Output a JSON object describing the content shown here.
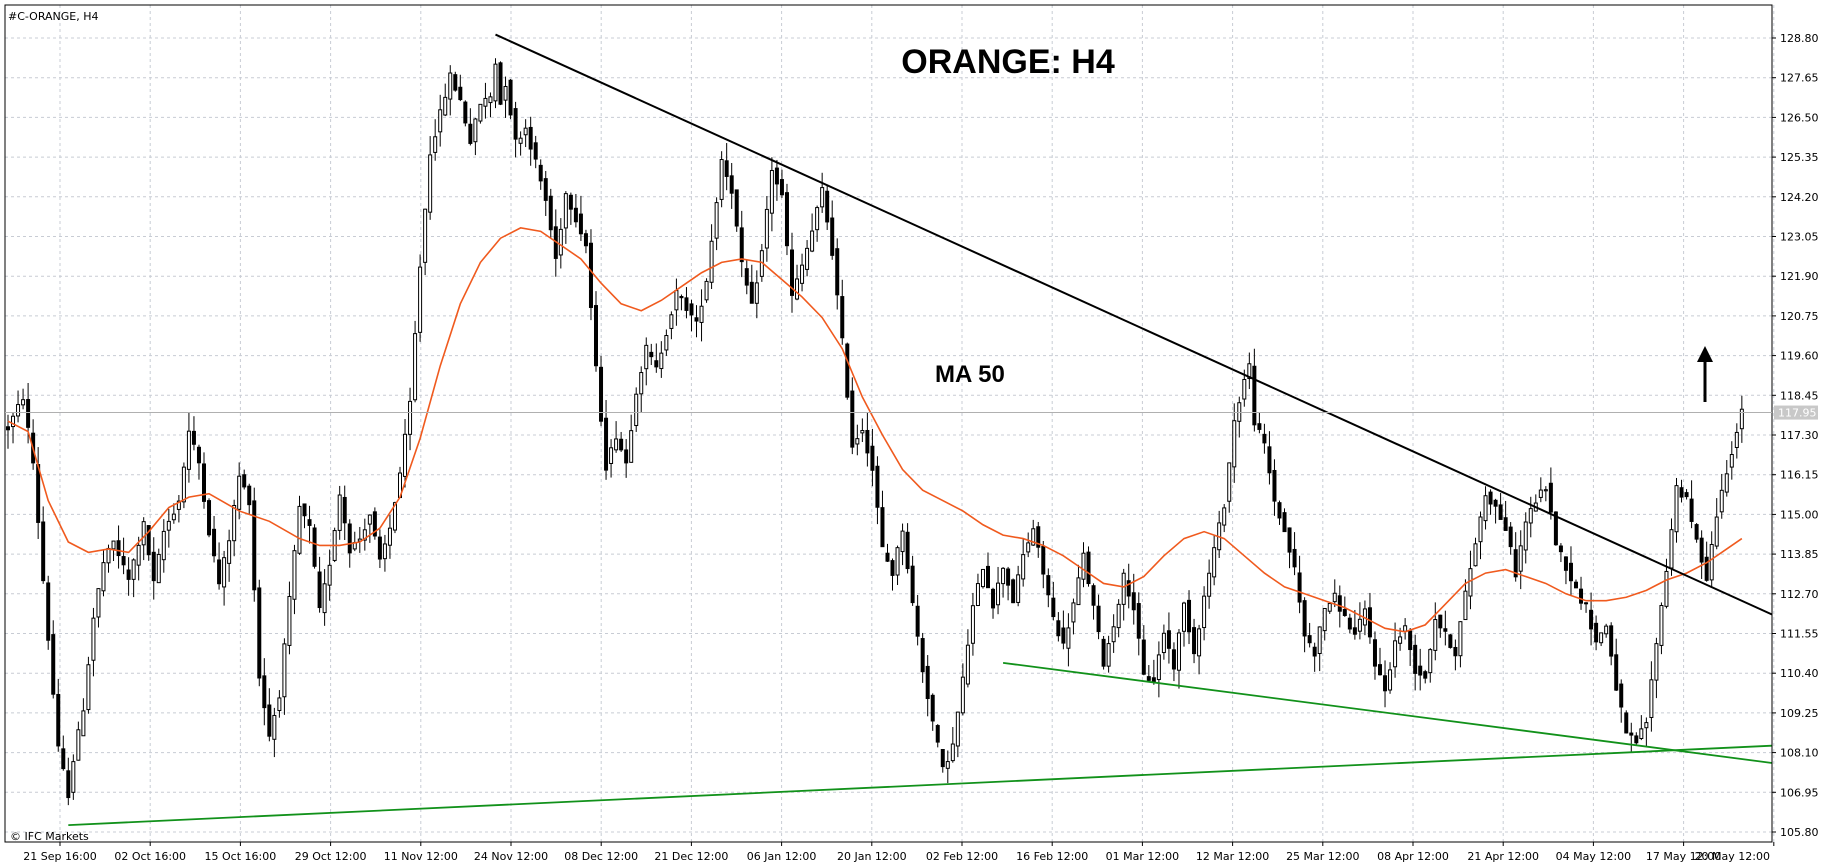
{
  "symbol_label": "#C-ORANGE, H4",
  "copyright": "© IFC Markets",
  "colors": {
    "background": "#ffffff",
    "grid": "#c8ccd4",
    "candle": "#000000",
    "ma": "#f05a1e",
    "trendline_down": "#000000",
    "trendline_support": "#11911a",
    "price_tag": "#c8c8c8"
  },
  "chart_data": {
    "type": "candlestick",
    "title": "ORANGE: H4",
    "annotation_ma": "MA 50",
    "arrow_direction": "up",
    "current_price": 117.95,
    "ylim": [
      105.8,
      128.8
    ],
    "grid": true,
    "y_ticks": [
      "128.80",
      "127.65",
      "126.50",
      "125.35",
      "124.20",
      "123.05",
      "121.90",
      "120.75",
      "119.60",
      "118.45",
      "117.30",
      "116.15",
      "115.00",
      "113.85",
      "112.70",
      "111.55",
      "110.40",
      "109.25",
      "108.10",
      "106.95",
      "105.80"
    ],
    "x_ticks": [
      "21 Sep 16:00",
      "02 Oct 16:00",
      "15 Oct 16:00",
      "29 Oct 12:00",
      "11 Nov 12:00",
      "24 Nov 12:00",
      "08 Dec 12:00",
      "21 Dec 12:00",
      "06 Jan 12:00",
      "20 Jan 12:00",
      "02 Feb 12:00",
      "16 Feb 12:00",
      "01 Mar 12:00",
      "12 Mar 12:00",
      "25 Mar 12:00",
      "08 Apr 12:00",
      "21 Apr 12:00",
      "04 May 12:00",
      "17 May 12:00",
      "20 May 12:00"
    ],
    "price_path": [
      [
        0,
        117.5
      ],
      [
        3,
        118.4
      ],
      [
        5,
        116.5
      ],
      [
        8,
        111.4
      ],
      [
        10,
        108.2
      ],
      [
        12,
        106.9
      ],
      [
        13,
        107.9
      ],
      [
        15,
        109.4
      ],
      [
        17,
        112.0
      ],
      [
        19,
        113.6
      ],
      [
        21,
        114.2
      ],
      [
        24,
        113.1
      ],
      [
        27,
        114.7
      ],
      [
        29,
        113.0
      ],
      [
        31,
        114.5
      ],
      [
        34,
        115.4
      ],
      [
        36,
        117.4
      ],
      [
        38,
        116.5
      ],
      [
        40,
        114.5
      ],
      [
        42,
        113.0
      ],
      [
        44,
        114.3
      ],
      [
        46,
        116.1
      ],
      [
        48,
        115.4
      ],
      [
        50,
        110.3
      ],
      [
        52,
        108.6
      ],
      [
        54,
        109.8
      ],
      [
        56,
        112.5
      ],
      [
        58,
        115.2
      ],
      [
        60,
        114.6
      ],
      [
        62,
        112.2
      ],
      [
        64,
        113.6
      ],
      [
        66,
        115.6
      ],
      [
        68,
        114.0
      ],
      [
        70,
        114.3
      ],
      [
        72,
        115.0
      ],
      [
        74,
        113.6
      ],
      [
        76,
        114.6
      ],
      [
        78,
        116.2
      ],
      [
        80,
        118.2
      ],
      [
        82,
        122.2
      ],
      [
        84,
        125.5
      ],
      [
        86,
        126.6
      ],
      [
        88,
        127.7
      ],
      [
        90,
        127.0
      ],
      [
        92,
        125.8
      ],
      [
        94,
        126.9
      ],
      [
        96,
        127.1
      ],
      [
        97,
        128.1
      ],
      [
        98,
        126.9
      ],
      [
        99,
        127.5
      ],
      [
        101,
        125.8
      ],
      [
        103,
        126.2
      ],
      [
        105,
        125.2
      ],
      [
        107,
        124.1
      ],
      [
        109,
        122.4
      ],
      [
        111,
        124.3
      ],
      [
        113,
        123.6
      ],
      [
        115,
        122.8
      ],
      [
        117,
        119.2
      ],
      [
        119,
        116.4
      ],
      [
        121,
        117.3
      ],
      [
        123,
        116.5
      ],
      [
        125,
        118.6
      ],
      [
        127,
        119.8
      ],
      [
        129,
        119.2
      ],
      [
        131,
        120.3
      ],
      [
        133,
        121.4
      ],
      [
        135,
        121.0
      ],
      [
        137,
        120.5
      ],
      [
        139,
        121.8
      ],
      [
        141,
        124.1
      ],
      [
        142,
        125.3
      ],
      [
        144,
        124.4
      ],
      [
        146,
        122.2
      ],
      [
        148,
        121.0
      ],
      [
        150,
        122.6
      ],
      [
        152,
        125.0
      ],
      [
        154,
        124.2
      ],
      [
        156,
        121.3
      ],
      [
        158,
        122.2
      ],
      [
        160,
        123.2
      ],
      [
        162,
        124.4
      ],
      [
        164,
        122.6
      ],
      [
        166,
        120.0
      ],
      [
        168,
        117.0
      ],
      [
        170,
        117.5
      ],
      [
        172,
        116.3
      ],
      [
        174,
        114.0
      ],
      [
        176,
        113.3
      ],
      [
        178,
        114.6
      ],
      [
        180,
        112.4
      ],
      [
        182,
        110.5
      ],
      [
        184,
        109.0
      ],
      [
        186,
        107.6
      ],
      [
        188,
        108.3
      ],
      [
        190,
        110.2
      ],
      [
        192,
        112.3
      ],
      [
        194,
        113.5
      ],
      [
        196,
        112.4
      ],
      [
        198,
        113.5
      ],
      [
        200,
        112.5
      ],
      [
        202,
        113.8
      ],
      [
        204,
        114.6
      ],
      [
        206,
        113.3
      ],
      [
        208,
        112.0
      ],
      [
        210,
        111.2
      ],
      [
        212,
        112.4
      ],
      [
        214,
        113.8
      ],
      [
        216,
        112.3
      ],
      [
        218,
        110.7
      ],
      [
        220,
        111.8
      ],
      [
        222,
        113.2
      ],
      [
        224,
        112.3
      ],
      [
        226,
        110.3
      ],
      [
        228,
        110.2
      ],
      [
        230,
        111.6
      ],
      [
        232,
        110.6
      ],
      [
        234,
        112.4
      ],
      [
        236,
        111.0
      ],
      [
        238,
        112.6
      ],
      [
        240,
        114.0
      ],
      [
        242,
        115.3
      ],
      [
        244,
        117.7
      ],
      [
        246,
        118.9
      ],
      [
        247,
        119.3
      ],
      [
        248,
        117.7
      ],
      [
        250,
        117.0
      ],
      [
        252,
        115.4
      ],
      [
        254,
        114.5
      ],
      [
        256,
        113.4
      ],
      [
        258,
        111.5
      ],
      [
        260,
        111.0
      ],
      [
        262,
        112.3
      ],
      [
        264,
        112.6
      ],
      [
        266,
        112.0
      ],
      [
        268,
        111.5
      ],
      [
        270,
        112.2
      ],
      [
        272,
        110.7
      ],
      [
        274,
        109.9
      ],
      [
        276,
        111.3
      ],
      [
        278,
        111.7
      ],
      [
        280,
        110.5
      ],
      [
        282,
        110.3
      ],
      [
        284,
        112.0
      ],
      [
        286,
        111.5
      ],
      [
        288,
        111.0
      ],
      [
        290,
        112.7
      ],
      [
        292,
        114.2
      ],
      [
        294,
        115.6
      ],
      [
        296,
        115.2
      ],
      [
        298,
        114.6
      ],
      [
        300,
        113.3
      ],
      [
        302,
        114.8
      ],
      [
        304,
        115.4
      ],
      [
        306,
        115.8
      ],
      [
        308,
        114.2
      ],
      [
        310,
        113.5
      ],
      [
        312,
        112.8
      ],
      [
        314,
        112.3
      ],
      [
        316,
        111.3
      ],
      [
        318,
        111.8
      ],
      [
        320,
        110.0
      ],
      [
        322,
        108.6
      ],
      [
        324,
        108.4
      ],
      [
        326,
        109.0
      ],
      [
        328,
        111.3
      ],
      [
        330,
        113.4
      ],
      [
        332,
        115.8
      ],
      [
        334,
        115.4
      ],
      [
        336,
        114.2
      ],
      [
        338,
        113.2
      ],
      [
        340,
        115.0
      ],
      [
        342,
        116.3
      ],
      [
        344,
        117.4
      ],
      [
        345,
        117.95
      ]
    ],
    "ma50_path": [
      [
        0,
        117.7
      ],
      [
        4,
        117.4
      ],
      [
        8,
        115.4
      ],
      [
        12,
        114.2
      ],
      [
        16,
        113.9
      ],
      [
        20,
        114.0
      ],
      [
        24,
        113.9
      ],
      [
        28,
        114.5
      ],
      [
        32,
        115.2
      ],
      [
        36,
        115.5
      ],
      [
        40,
        115.6
      ],
      [
        46,
        115.1
      ],
      [
        52,
        114.8
      ],
      [
        58,
        114.3
      ],
      [
        62,
        114.1
      ],
      [
        66,
        114.1
      ],
      [
        70,
        114.2
      ],
      [
        74,
        114.6
      ],
      [
        78,
        115.5
      ],
      [
        82,
        117.2
      ],
      [
        86,
        119.3
      ],
      [
        90,
        121.1
      ],
      [
        94,
        122.3
      ],
      [
        98,
        123.0
      ],
      [
        102,
        123.3
      ],
      [
        106,
        123.2
      ],
      [
        110,
        122.8
      ],
      [
        114,
        122.4
      ],
      [
        118,
        121.7
      ],
      [
        122,
        121.1
      ],
      [
        126,
        120.9
      ],
      [
        130,
        121.2
      ],
      [
        134,
        121.6
      ],
      [
        138,
        122.0
      ],
      [
        142,
        122.3
      ],
      [
        146,
        122.4
      ],
      [
        150,
        122.3
      ],
      [
        154,
        121.8
      ],
      [
        158,
        121.3
      ],
      [
        162,
        120.7
      ],
      [
        166,
        119.8
      ],
      [
        170,
        118.4
      ],
      [
        174,
        117.3
      ],
      [
        178,
        116.3
      ],
      [
        182,
        115.7
      ],
      [
        186,
        115.4
      ],
      [
        190,
        115.1
      ],
      [
        194,
        114.7
      ],
      [
        198,
        114.4
      ],
      [
        202,
        114.3
      ],
      [
        206,
        114.1
      ],
      [
        210,
        113.8
      ],
      [
        214,
        113.4
      ],
      [
        218,
        113.0
      ],
      [
        222,
        112.9
      ],
      [
        226,
        113.2
      ],
      [
        230,
        113.8
      ],
      [
        234,
        114.3
      ],
      [
        238,
        114.5
      ],
      [
        242,
        114.3
      ],
      [
        246,
        113.8
      ],
      [
        250,
        113.3
      ],
      [
        254,
        112.9
      ],
      [
        258,
        112.7
      ],
      [
        262,
        112.5
      ],
      [
        266,
        112.3
      ],
      [
        270,
        112.0
      ],
      [
        274,
        111.7
      ],
      [
        278,
        111.6
      ],
      [
        282,
        111.8
      ],
      [
        286,
        112.4
      ],
      [
        290,
        113.0
      ],
      [
        294,
        113.3
      ],
      [
        298,
        113.4
      ],
      [
        302,
        113.2
      ],
      [
        306,
        113.0
      ],
      [
        310,
        112.7
      ],
      [
        314,
        112.5
      ],
      [
        318,
        112.5
      ],
      [
        322,
        112.6
      ],
      [
        326,
        112.8
      ],
      [
        330,
        113.1
      ],
      [
        334,
        113.3
      ],
      [
        338,
        113.6
      ],
      [
        342,
        114.0
      ],
      [
        345,
        114.3
      ]
    ],
    "trendlines": [
      {
        "name": "resistance",
        "points": [
          [
            97,
            128.9
          ],
          [
            351,
            112.1
          ]
        ]
      },
      {
        "name": "lower-support",
        "points": [
          [
            12,
            106.0
          ],
          [
            351,
            108.3
          ]
        ]
      },
      {
        "name": "falling-support",
        "points": [
          [
            198,
            110.7
          ],
          [
            351,
            107.8
          ]
        ]
      }
    ]
  }
}
